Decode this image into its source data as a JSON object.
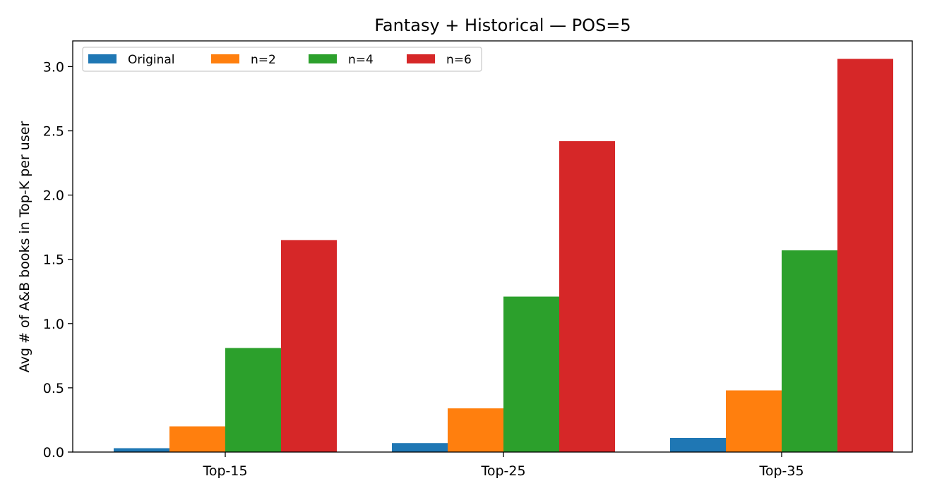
{
  "chart_data": {
    "type": "bar",
    "title": "Fantasy + Historical — POS=5",
    "xlabel": "",
    "ylabel": "Avg # of A&B books in Top-K per user",
    "categories": [
      "Top-15",
      "Top-25",
      "Top-35"
    ],
    "series": [
      {
        "name": "Original",
        "color": "#1f77b4",
        "values": [
          0.03,
          0.07,
          0.11
        ]
      },
      {
        "name": "n=2",
        "color": "#ff7f0e",
        "values": [
          0.2,
          0.34,
          0.48
        ]
      },
      {
        "name": "n=4",
        "color": "#2ca02c",
        "values": [
          0.81,
          1.21,
          1.57
        ]
      },
      {
        "name": "n=6",
        "color": "#d62728",
        "values": [
          1.65,
          2.42,
          3.06
        ]
      }
    ],
    "ylim": [
      0,
      3.2
    ],
    "yticks": [
      "0.0",
      "0.5",
      "1.0",
      "1.5",
      "2.0",
      "2.5",
      "3.0"
    ],
    "grid": false,
    "legend_position": "top-left"
  }
}
